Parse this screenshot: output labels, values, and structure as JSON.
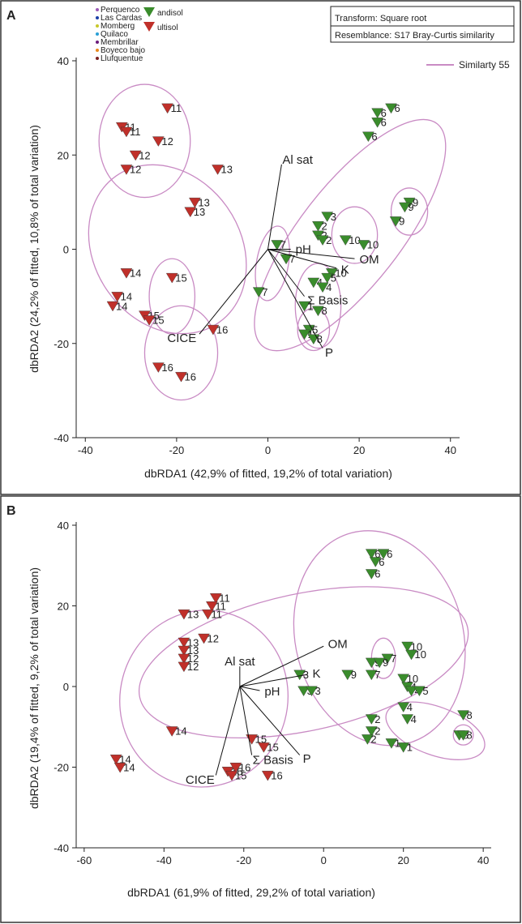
{
  "figure": {
    "panel_a_label": "A",
    "panel_b_label": "B",
    "legend": {
      "sites": [
        {
          "name": "Perquenco",
          "color": "#9b59b6"
        },
        {
          "name": "Las Cardas",
          "color": "#1a3fa8"
        },
        {
          "name": "Momberg",
          "color": "#c8c82a"
        },
        {
          "name": "Quilaco",
          "color": "#2a9fd6"
        },
        {
          "name": "Membrillar",
          "color": "#6a1b7a"
        },
        {
          "name": "Boyeco bajo",
          "color": "#e8891c"
        },
        {
          "name": "Llufquentue",
          "color": "#7a2020"
        }
      ],
      "soils": [
        {
          "name": "andisol",
          "color": "#3a8c2c"
        },
        {
          "name": "ultisol",
          "color": "#c0302a"
        }
      ],
      "transform": "Transform: Square root",
      "resemblance": "Resemblance: S17 Bray-Curtis similarity",
      "similarity": "Similarty 55",
      "ellipse_color": "#c98bc4"
    }
  },
  "chart_data": [
    {
      "type": "scatter",
      "panel": "A",
      "xlabel": "dbRDA1 (42,9% of fitted, 19,2% of total variation)",
      "ylabel": "dbRDA2 (24,2% of fitted, 10,8% of total variation)",
      "xlim": [
        -42,
        42
      ],
      "ylim": [
        -40,
        40
      ],
      "xticks": [
        -40,
        -20,
        0,
        20,
        40
      ],
      "yticks": [
        -40,
        -20,
        0,
        20,
        40
      ],
      "points": [
        {
          "x": -32,
          "y": 26,
          "label": "11",
          "site": "Boyeco bajo",
          "soil": "ultisol"
        },
        {
          "x": -31,
          "y": 25,
          "label": "11",
          "site": "Boyeco bajo",
          "soil": "ultisol"
        },
        {
          "x": -22,
          "y": 30,
          "label": "11",
          "site": "Boyeco bajo",
          "soil": "ultisol"
        },
        {
          "x": -24,
          "y": 23,
          "label": "12",
          "site": "Boyeco bajo",
          "soil": "ultisol"
        },
        {
          "x": -29,
          "y": 20,
          "label": "12",
          "site": "Boyeco bajo",
          "soil": "ultisol"
        },
        {
          "x": -31,
          "y": 17,
          "label": "12",
          "site": "Boyeco bajo",
          "soil": "ultisol"
        },
        {
          "x": -11,
          "y": 17,
          "label": "13",
          "site": "Llufquentue",
          "soil": "ultisol"
        },
        {
          "x": -16,
          "y": 10,
          "label": "13",
          "site": "Llufquentue",
          "soil": "ultisol"
        },
        {
          "x": -17,
          "y": 8,
          "label": "13",
          "site": "Llufquentue",
          "soil": "ultisol"
        },
        {
          "x": -31,
          "y": -5,
          "label": "14",
          "site": "Llufquentue",
          "soil": "ultisol"
        },
        {
          "x": -33,
          "y": -10,
          "label": "14",
          "site": "Llufquentue",
          "soil": "ultisol"
        },
        {
          "x": -34,
          "y": -12,
          "label": "14",
          "site": "Llufquentue",
          "soil": "ultisol"
        },
        {
          "x": -21,
          "y": -6,
          "label": "15",
          "site": "Llufquentue",
          "soil": "ultisol"
        },
        {
          "x": -27,
          "y": -14,
          "label": "15",
          "site": "Llufquentue",
          "soil": "ultisol"
        },
        {
          "x": -26,
          "y": -15,
          "label": "15",
          "site": "Llufquentue",
          "soil": "ultisol"
        },
        {
          "x": -12,
          "y": -17,
          "label": "16",
          "site": "Llufquentue",
          "soil": "ultisol"
        },
        {
          "x": -24,
          "y": -25,
          "label": "16",
          "site": "Llufquentue",
          "soil": "ultisol"
        },
        {
          "x": -19,
          "y": -27,
          "label": "16",
          "site": "Llufquentue",
          "soil": "ultisol"
        },
        {
          "x": 24,
          "y": 29,
          "label": "6",
          "site": "Quilaco",
          "soil": "andisol"
        },
        {
          "x": 27,
          "y": 30,
          "label": "6",
          "site": "Quilaco",
          "soil": "andisol"
        },
        {
          "x": 24,
          "y": 27,
          "label": "6",
          "site": "Quilaco",
          "soil": "andisol"
        },
        {
          "x": 22,
          "y": 24,
          "label": "6",
          "site": "Quilaco",
          "soil": "andisol"
        },
        {
          "x": 31,
          "y": 10,
          "label": "9",
          "site": "Membrillar",
          "soil": "andisol"
        },
        {
          "x": 30,
          "y": 9,
          "label": "9",
          "site": "Membrillar",
          "soil": "andisol"
        },
        {
          "x": 28,
          "y": 6,
          "label": "9",
          "site": "Membrillar",
          "soil": "andisol"
        },
        {
          "x": 13,
          "y": 7,
          "label": "3",
          "site": "Las Cardas",
          "soil": "andisol"
        },
        {
          "x": 11,
          "y": 5,
          "label": "2",
          "site": "Las Cardas",
          "soil": "andisol"
        },
        {
          "x": 11,
          "y": 3,
          "label": "2",
          "site": "Las Cardas",
          "soil": "andisol"
        },
        {
          "x": 12,
          "y": 2,
          "label": "2",
          "site": "Las Cardas",
          "soil": "andisol"
        },
        {
          "x": 17,
          "y": 2,
          "label": "10",
          "site": "Membrillar",
          "soil": "andisol"
        },
        {
          "x": 21,
          "y": 1,
          "label": "10",
          "site": "Membrillar",
          "soil": "andisol"
        },
        {
          "x": 14,
          "y": -5,
          "label": "10",
          "site": "Membrillar",
          "soil": "andisol"
        },
        {
          "x": 2,
          "y": 1,
          "label": "7",
          "site": "Membrillar",
          "soil": "andisol"
        },
        {
          "x": 4,
          "y": -2,
          "label": "7",
          "site": "Membrillar",
          "soil": "andisol"
        },
        {
          "x": -2,
          "y": -9,
          "label": "7",
          "site": "Membrillar",
          "soil": "andisol"
        },
        {
          "x": 10,
          "y": -7,
          "label": "4",
          "site": "Momberg",
          "soil": "andisol"
        },
        {
          "x": 12,
          "y": -8,
          "label": "4",
          "site": "Momberg",
          "soil": "andisol"
        },
        {
          "x": 13,
          "y": -6,
          "label": "5",
          "site": "Quilaco",
          "soil": "andisol"
        },
        {
          "x": 8,
          "y": -12,
          "label": "1",
          "site": "Perquenco",
          "soil": "andisol"
        },
        {
          "x": 11,
          "y": -13,
          "label": "8",
          "site": "Perquenco",
          "soil": "andisol"
        },
        {
          "x": 9,
          "y": -17,
          "label": "5",
          "site": "Quilaco",
          "soil": "andisol"
        },
        {
          "x": 8,
          "y": -18,
          "label": "1",
          "site": "Perquenco",
          "soil": "andisol"
        },
        {
          "x": 10,
          "y": -19,
          "label": "8",
          "site": "Perquenco",
          "soil": "andisol"
        }
      ],
      "vectors": [
        {
          "label": "Al sat",
          "x": 3,
          "y": 18
        },
        {
          "label": "pH",
          "x": 5,
          "y": 0
        },
        {
          "label": "OM",
          "x": 19,
          "y": -2
        },
        {
          "label": "K",
          "x": 15,
          "y": -4
        },
        {
          "label": "Σ Basis",
          "x": 8,
          "y": -10
        },
        {
          "label": "P",
          "x": 12,
          "y": -21
        },
        {
          "label": "CICE",
          "x": -15,
          "y": -18
        }
      ],
      "ellipses": [
        {
          "cx": -27,
          "cy": 23,
          "rx": 10,
          "ry": 12,
          "rot": 0
        },
        {
          "cx": -22,
          "cy": 0,
          "rx": 16,
          "ry": 19,
          "rot": -35
        },
        {
          "cx": -21,
          "cy": -10,
          "rx": 5,
          "ry": 8,
          "rot": 0
        },
        {
          "cx": -19,
          "cy": -22,
          "rx": 8,
          "ry": 10,
          "rot": 0
        },
        {
          "cx": 1,
          "cy": -3,
          "rx": 3.5,
          "ry": 8,
          "rot": 10
        },
        {
          "cx": 18,
          "cy": 3,
          "rx": 11,
          "ry": 30,
          "rot": 38
        },
        {
          "cx": 31,
          "cy": 8,
          "rx": 4,
          "ry": 5,
          "rot": 0
        },
        {
          "cx": 19,
          "cy": 3,
          "rx": 5,
          "ry": 6,
          "rot": 0
        },
        {
          "cx": 11,
          "cy": -12,
          "rx": 5,
          "ry": 9,
          "rot": 0
        },
        {
          "cx": 10,
          "cy": -17,
          "rx": 3.5,
          "ry": 4.5,
          "rot": 0
        }
      ]
    },
    {
      "type": "scatter",
      "panel": "B",
      "xlabel": "dbRDA1 (61,9% of fitted, 29,2% of total variation)",
      "ylabel": "dbRDA2 (19,4% of fitted, 9,2% of total variation)",
      "xlim": [
        -62,
        42
      ],
      "ylim": [
        -40,
        40
      ],
      "xticks": [
        -60,
        -40,
        -20,
        0,
        20,
        40
      ],
      "yticks": [
        -40,
        -20,
        0,
        20,
        40
      ],
      "points": [
        {
          "x": 12,
          "y": 33,
          "label": "6",
          "site": "Quilaco",
          "soil": "andisol"
        },
        {
          "x": 15,
          "y": 33,
          "label": "6",
          "site": "Quilaco",
          "soil": "andisol"
        },
        {
          "x": 13,
          "y": 31,
          "label": "6",
          "site": "Quilaco",
          "soil": "andisol"
        },
        {
          "x": 12,
          "y": 28,
          "label": "6",
          "site": "Quilaco",
          "soil": "andisol"
        },
        {
          "x": -27,
          "y": 22,
          "label": "11",
          "site": "Boyeco bajo",
          "soil": "ultisol"
        },
        {
          "x": -28,
          "y": 20,
          "label": "11",
          "site": "Boyeco bajo",
          "soil": "ultisol"
        },
        {
          "x": -29,
          "y": 18,
          "label": "11",
          "site": "Boyeco bajo",
          "soil": "ultisol"
        },
        {
          "x": -35,
          "y": 18,
          "label": "13",
          "site": "Llufquentue",
          "soil": "ultisol"
        },
        {
          "x": -30,
          "y": 12,
          "label": "12",
          "site": "Boyeco bajo",
          "soil": "ultisol"
        },
        {
          "x": -35,
          "y": 11,
          "label": "13",
          "site": "Llufquentue",
          "soil": "ultisol"
        },
        {
          "x": -35,
          "y": 9,
          "label": "13",
          "site": "Llufquentue",
          "soil": "ultisol"
        },
        {
          "x": -35,
          "y": 7,
          "label": "12",
          "site": "Boyeco bajo",
          "soil": "ultisol"
        },
        {
          "x": -35,
          "y": 5,
          "label": "12",
          "site": "Boyeco bajo",
          "soil": "ultisol"
        },
        {
          "x": 16,
          "y": 7,
          "label": "7",
          "site": "Membrillar",
          "soil": "andisol"
        },
        {
          "x": 12,
          "y": 6,
          "label": "9",
          "site": "Membrillar",
          "soil": "andisol"
        },
        {
          "x": 14,
          "y": 6,
          "label": "9",
          "site": "Membrillar",
          "soil": "andisol"
        },
        {
          "x": 21,
          "y": 10,
          "label": "10",
          "site": "Membrillar",
          "soil": "andisol"
        },
        {
          "x": 22,
          "y": 8,
          "label": "10",
          "site": "Membrillar",
          "soil": "andisol"
        },
        {
          "x": 6,
          "y": 3,
          "label": "9",
          "site": "Membrillar",
          "soil": "andisol"
        },
        {
          "x": 12,
          "y": 3,
          "label": "7",
          "site": "Membrillar",
          "soil": "andisol"
        },
        {
          "x": -6,
          "y": 3,
          "label": "3",
          "site": "Las Cardas",
          "soil": "andisol"
        },
        {
          "x": -5,
          "y": -1,
          "label": "3",
          "site": "Las Cardas",
          "soil": "andisol"
        },
        {
          "x": -3,
          "y": -1,
          "label": "3",
          "site": "Las Cardas",
          "soil": "andisol"
        },
        {
          "x": 20,
          "y": 2,
          "label": "10",
          "site": "Membrillar",
          "soil": "andisol"
        },
        {
          "x": 21,
          "y": 0,
          "label": "4",
          "site": "Momberg",
          "soil": "andisol"
        },
        {
          "x": 22,
          "y": -1,
          "label": "4",
          "site": "Momberg",
          "soil": "andisol"
        },
        {
          "x": 24,
          "y": -1,
          "label": "5",
          "site": "Quilaco",
          "soil": "andisol"
        },
        {
          "x": 20,
          "y": -5,
          "label": "4",
          "site": "Momberg",
          "soil": "andisol"
        },
        {
          "x": 21,
          "y": -8,
          "label": "4",
          "site": "Momberg",
          "soil": "andisol"
        },
        {
          "x": 12,
          "y": -8,
          "label": "2",
          "site": "Las Cardas",
          "soil": "andisol"
        },
        {
          "x": 12,
          "y": -11,
          "label": "2",
          "site": "Las Cardas",
          "soil": "andisol"
        },
        {
          "x": 11,
          "y": -13,
          "label": "2",
          "site": "Las Cardas",
          "soil": "andisol"
        },
        {
          "x": 17,
          "y": -14,
          "label": "1",
          "site": "Perquenco",
          "soil": "andisol"
        },
        {
          "x": 20,
          "y": -15,
          "label": "1",
          "site": "Perquenco",
          "soil": "andisol"
        },
        {
          "x": 35,
          "y": -7,
          "label": "8",
          "site": "Perquenco",
          "soil": "andisol"
        },
        {
          "x": 34,
          "y": -12,
          "label": "8",
          "site": "Perquenco",
          "soil": "andisol"
        },
        {
          "x": 35,
          "y": -12,
          "label": "8",
          "site": "Perquenco",
          "soil": "andisol"
        },
        {
          "x": -38,
          "y": -11,
          "label": "14",
          "site": "Llufquentue",
          "soil": "ultisol"
        },
        {
          "x": -52,
          "y": -18,
          "label": "14",
          "site": "Llufquentue",
          "soil": "ultisol"
        },
        {
          "x": -51,
          "y": -20,
          "label": "14",
          "site": "Llufquentue",
          "soil": "ultisol"
        },
        {
          "x": -18,
          "y": -13,
          "label": "15",
          "site": "Llufquentue",
          "soil": "ultisol"
        },
        {
          "x": -15,
          "y": -15,
          "label": "15",
          "site": "Llufquentue",
          "soil": "ultisol"
        },
        {
          "x": -24,
          "y": -21,
          "label": "15",
          "site": "Llufquentue",
          "soil": "ultisol"
        },
        {
          "x": -22,
          "y": -20,
          "label": "16",
          "site": "Llufquentue",
          "soil": "ultisol"
        },
        {
          "x": -23,
          "y": -22,
          "label": "15",
          "site": "Llufquentue",
          "soil": "ultisol"
        },
        {
          "x": -14,
          "y": -22,
          "label": "16",
          "site": "Llufquentue",
          "soil": "ultisol"
        }
      ],
      "vectors": [
        {
          "label": "Al sat",
          "x": -21,
          "y": 5
        },
        {
          "label": "OM",
          "x": 0,
          "y": 10
        },
        {
          "label": "K",
          "x": -4,
          "y": 3
        },
        {
          "label": "pH",
          "x": -16,
          "y": -1
        },
        {
          "label": "P",
          "x": -6,
          "y": -17
        },
        {
          "label": "Σ Basis",
          "x": -18,
          "y": -17
        },
        {
          "label": "CICE",
          "x": -27,
          "y": -22
        }
      ],
      "ellipses": [
        {
          "cx": -30,
          "cy": -3,
          "rx": 21,
          "ry": 22,
          "rot": 15
        },
        {
          "cx": -5,
          "cy": 6,
          "rx": 42,
          "ry": 17,
          "rot": -12
        },
        {
          "cx": 14,
          "cy": 12,
          "rx": 21,
          "ry": 27,
          "rot": -15
        },
        {
          "cx": 15,
          "cy": 7,
          "rx": 3,
          "ry": 5,
          "rot": 0
        },
        {
          "cx": 28,
          "cy": -11,
          "rx": 13,
          "ry": 6,
          "rot": 20
        },
        {
          "cx": 35,
          "cy": -12,
          "rx": 2.5,
          "ry": 2.5,
          "rot": 0
        }
      ]
    }
  ]
}
